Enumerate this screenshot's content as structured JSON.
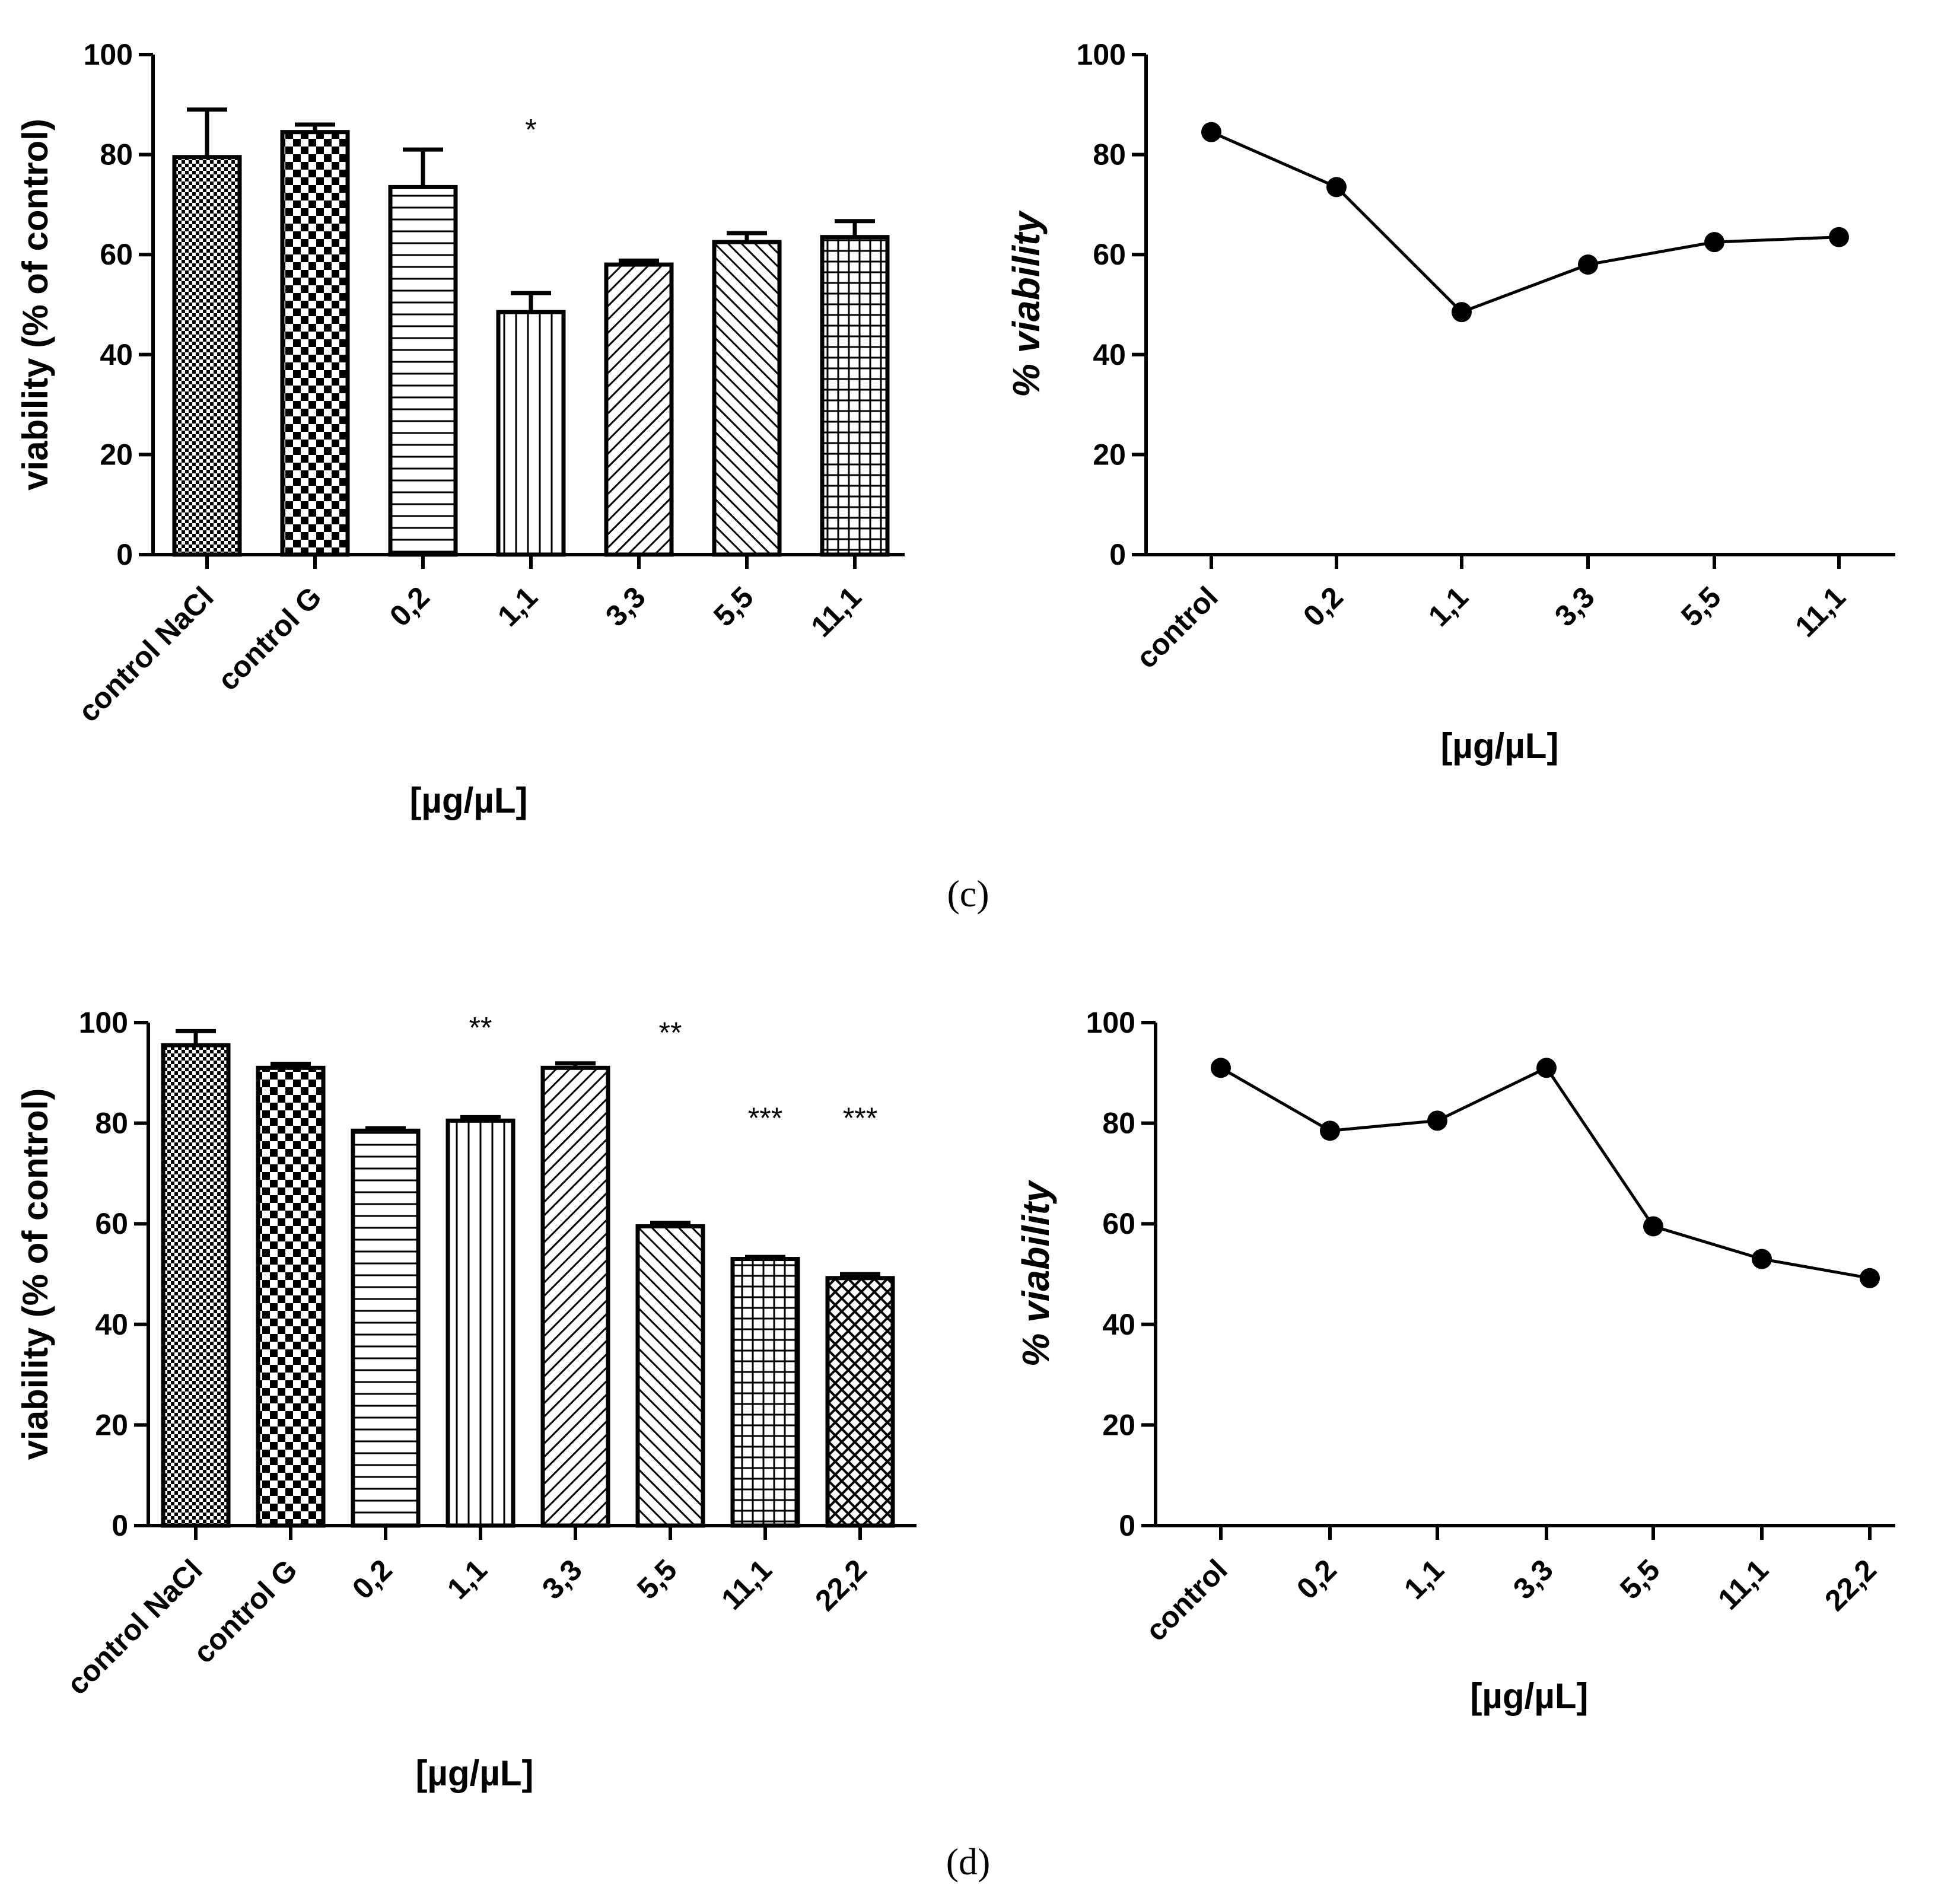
{
  "chart_data": [
    {
      "id": "c-bar",
      "type": "bar",
      "categories": [
        "control NaCl",
        "control G",
        "0,2",
        "1,1",
        "3,3",
        "5,5",
        "11,1"
      ],
      "values": [
        79.5,
        84.5,
        73.5,
        48.5,
        58,
        62.5,
        63.5
      ],
      "errors": [
        9.5,
        1.5,
        7.5,
        3.8,
        0.8,
        1.8,
        3.2
      ],
      "patterns": [
        "fine-check",
        "checker",
        "hlines",
        "vlines",
        "diag-right",
        "diag-left",
        "grid"
      ],
      "significance": [
        {
          "category": "1,1",
          "label": "*",
          "y": 83
        }
      ],
      "xlabel": "[µg/µL]",
      "ylabel": "viability (% of control)",
      "ylim": [
        0,
        100
      ],
      "yticks": [
        "0",
        "20",
        "40",
        "60",
        "80",
        "100"
      ],
      "legend": "none"
    },
    {
      "id": "c-line",
      "type": "line",
      "categories": [
        "control",
        "0,2",
        "1,1",
        "3,3",
        "5,5",
        "11,1"
      ],
      "values": [
        84.5,
        73.5,
        48.5,
        58,
        62.5,
        63.5
      ],
      "xlabel": "[µg/µL]",
      "ylabel": "% viability",
      "ylim": [
        0,
        100
      ],
      "yticks": [
        "0",
        "20",
        "40",
        "60",
        "80",
        "100"
      ],
      "legend": "none"
    },
    {
      "id": "d-bar",
      "type": "bar",
      "categories": [
        "control NaCl",
        "control G",
        "0,2",
        "1,1",
        "3,3",
        "5,5",
        "11,1",
        "22,2"
      ],
      "values": [
        95.5,
        91,
        78.5,
        80.5,
        91,
        59.5,
        53,
        49.2
      ],
      "errors": [
        2.8,
        0.8,
        0.5,
        0.7,
        0.9,
        0.7,
        0.4,
        0.8
      ],
      "patterns": [
        "fine-check",
        "checker",
        "hlines",
        "vlines",
        "diag-right",
        "diag-left",
        "grid",
        "crosshatch"
      ],
      "significance": [
        {
          "category": "1,1",
          "label": "**",
          "y": 97
        },
        {
          "category": "5,5",
          "label": "**",
          "y": 96
        },
        {
          "category": "11,1",
          "label": "***",
          "y": 79
        },
        {
          "category": "22,2",
          "label": "***",
          "y": 79
        }
      ],
      "xlabel": "[µg/µL]",
      "ylabel": "viability (% of control)",
      "ylim": [
        0,
        100
      ],
      "yticks": [
        "0",
        "20",
        "40",
        "60",
        "80",
        "100"
      ],
      "legend": "none"
    },
    {
      "id": "d-line",
      "type": "line",
      "categories": [
        "control",
        "0,2",
        "1,1",
        "3,3",
        "5,5",
        "11,1",
        "22,2"
      ],
      "values": [
        91,
        78.5,
        80.5,
        91,
        59.5,
        53,
        49.2
      ],
      "xlabel": "[µg/µL]",
      "ylabel": "% viability",
      "ylim": [
        0,
        100
      ],
      "yticks": [
        "0",
        "20",
        "40",
        "60",
        "80",
        "100"
      ],
      "legend": "none"
    }
  ],
  "panel_labels": {
    "c": "(c)",
    "d": "(d)"
  },
  "colors": {
    "ink": "#000000",
    "background": "#ffffff"
  }
}
